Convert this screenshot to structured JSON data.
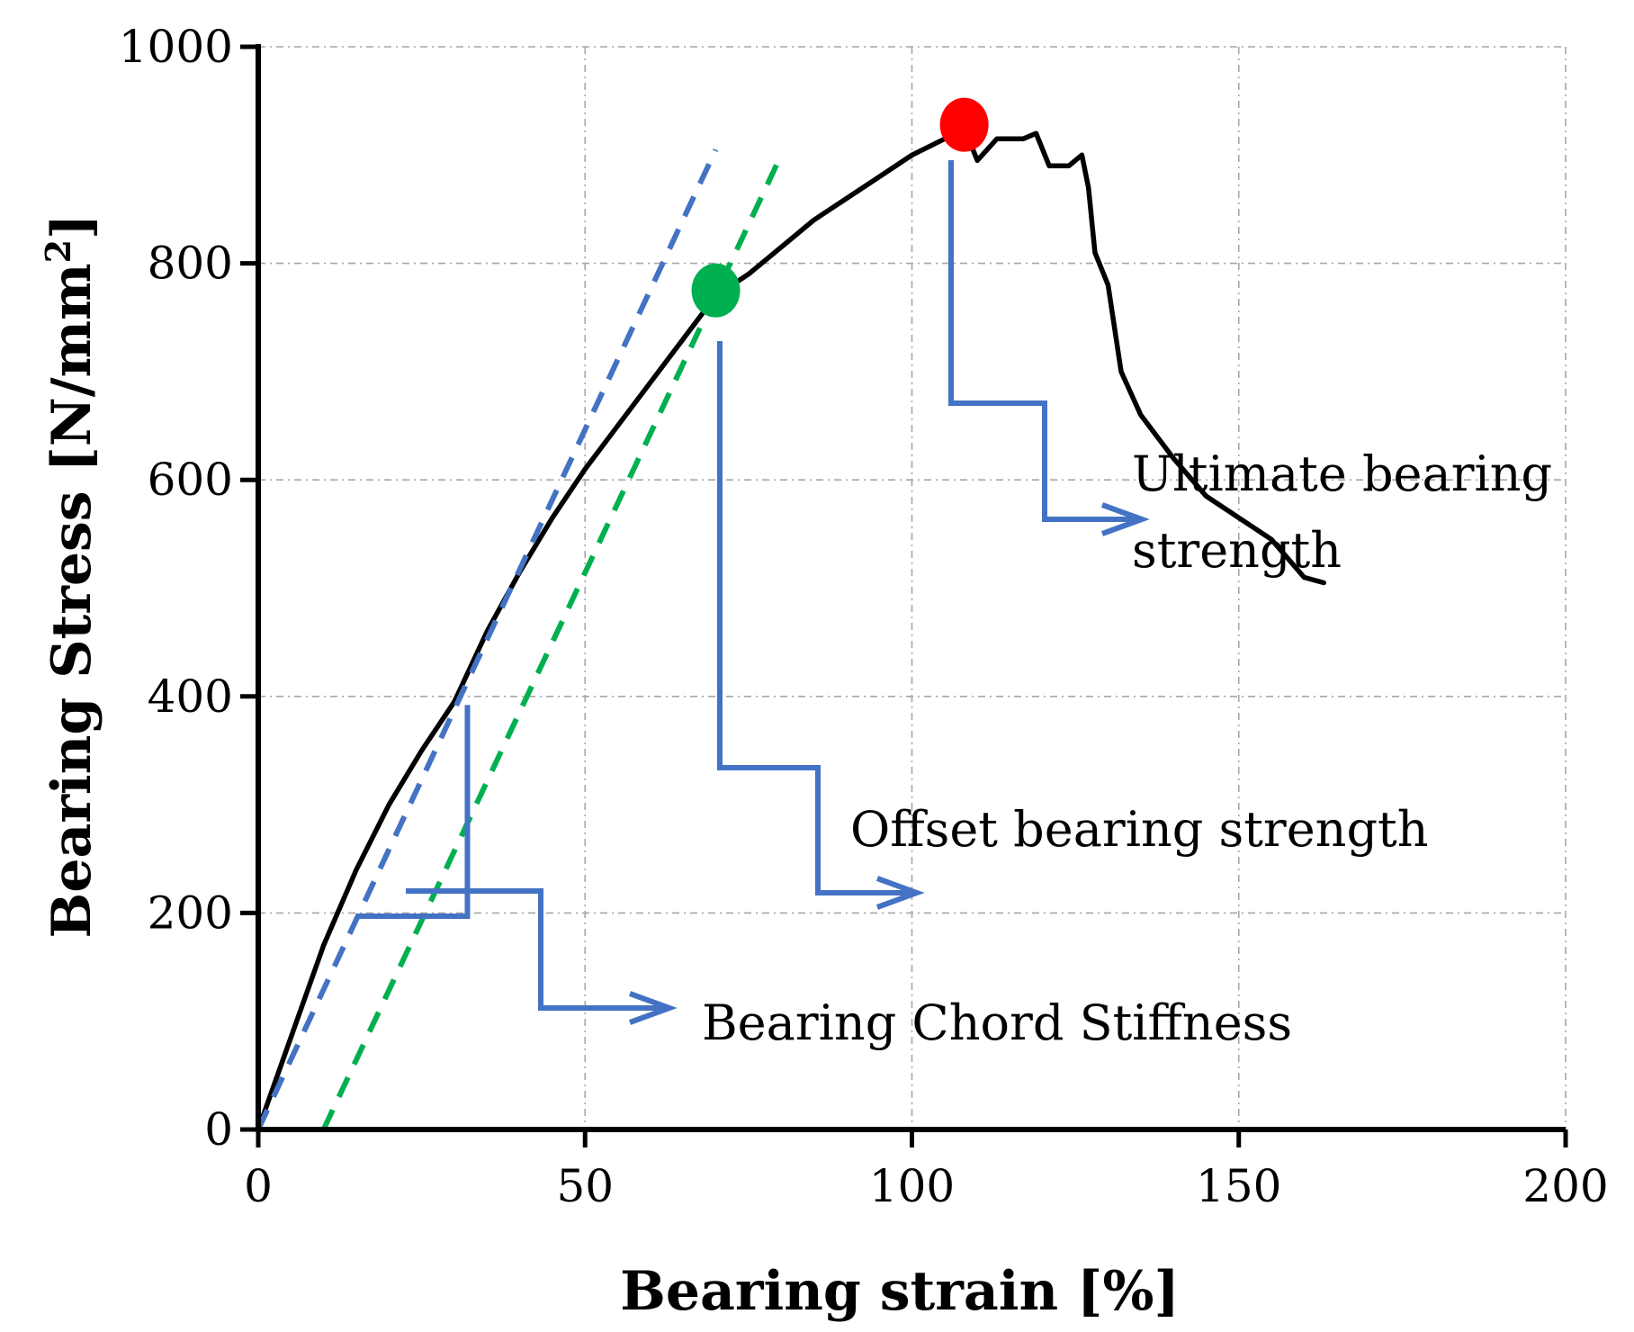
{
  "chart_data": {
    "type": "line",
    "xlabel": "Bearing strain [%]",
    "ylabel_main": "Bearing Stress [N/mm",
    "ylabel_sup": "2",
    "ylabel_end": "]",
    "xlim": [
      0,
      200
    ],
    "ylim": [
      0,
      1000
    ],
    "x_ticks": [
      0,
      50,
      100,
      150,
      200
    ],
    "y_ticks": [
      0,
      200,
      400,
      600,
      800,
      1000
    ],
    "grid": true,
    "series": [
      {
        "name": "Bearing stress-strain curve",
        "color": "#000000",
        "style": "solid",
        "points": [
          [
            0,
            0
          ],
          [
            5,
            85
          ],
          [
            10,
            170
          ],
          [
            15,
            240
          ],
          [
            20,
            300
          ],
          [
            25,
            350
          ],
          [
            30,
            395
          ],
          [
            35,
            460
          ],
          [
            40,
            515
          ],
          [
            45,
            565
          ],
          [
            50,
            610
          ],
          [
            55,
            650
          ],
          [
            60,
            690
          ],
          [
            65,
            730
          ],
          [
            70,
            770
          ],
          [
            75,
            790
          ],
          [
            80,
            815
          ],
          [
            85,
            840
          ],
          [
            90,
            860
          ],
          [
            95,
            880
          ],
          [
            100,
            900
          ],
          [
            105,
            915
          ],
          [
            108,
            925
          ],
          [
            110,
            895
          ],
          [
            113,
            915
          ],
          [
            117,
            915
          ],
          [
            119,
            920
          ],
          [
            121,
            890
          ],
          [
            124,
            890
          ],
          [
            126,
            900
          ],
          [
            127,
            870
          ],
          [
            128,
            810
          ],
          [
            130,
            780
          ],
          [
            132,
            700
          ],
          [
            135,
            660
          ],
          [
            140,
            620
          ],
          [
            145,
            585
          ],
          [
            150,
            565
          ],
          [
            155,
            545
          ],
          [
            160,
            510
          ],
          [
            163,
            505
          ]
        ]
      },
      {
        "name": "Initial slope line",
        "color": "#4472c4",
        "style": "dashed",
        "points": [
          [
            0,
            0
          ],
          [
            70,
            905
          ]
        ]
      },
      {
        "name": "Offset line",
        "color": "#00b050",
        "style": "dashed",
        "points": [
          [
            10,
            0
          ],
          [
            80,
            900
          ]
        ]
      }
    ],
    "markers": [
      {
        "name": "Offset bearing strength point",
        "x": 70,
        "y": 775,
        "color": "#00b050"
      },
      {
        "name": "Ultimate bearing strength point",
        "x": 108,
        "y": 928,
        "color": "#ff0000"
      }
    ],
    "chord_segment": {
      "x_start": 15,
      "x_end": 32,
      "y_low": 197,
      "y_high": 392
    },
    "annotations": [
      {
        "key": "chord",
        "text": "Bearing Chord Stiffness"
      },
      {
        "key": "offset",
        "text": "Offset bearing strength"
      },
      {
        "key": "ultimate_line1",
        "text": "Ultimate bearing"
      },
      {
        "key": "ultimate_line2",
        "text": "strength"
      }
    ],
    "annotation_color": "#4472c4"
  }
}
